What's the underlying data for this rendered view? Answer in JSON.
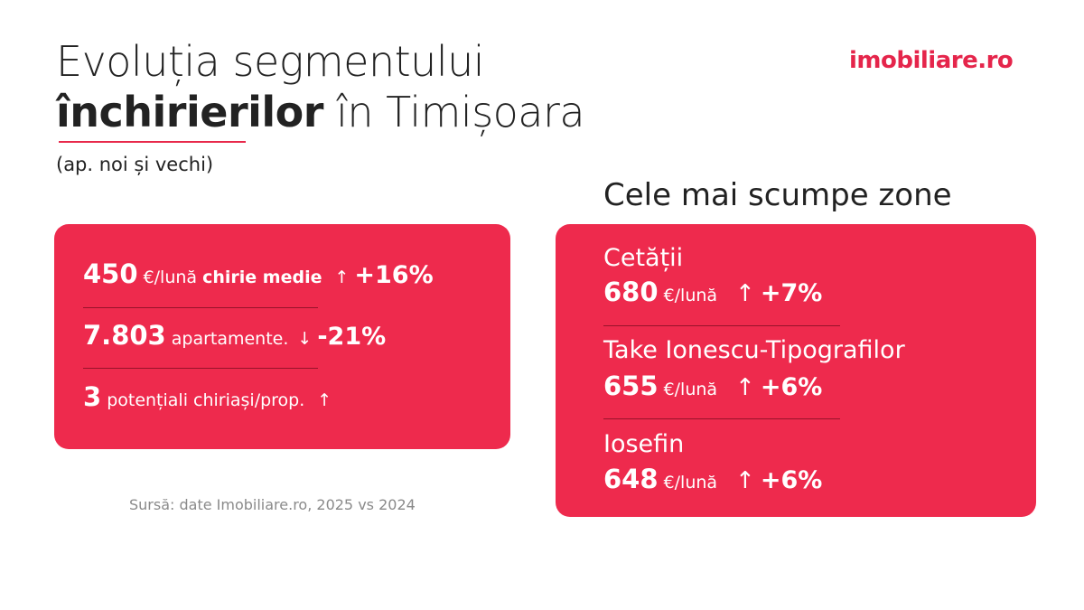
{
  "header": {
    "title_line1": "Evoluția segmentului",
    "title_bold": "închirierilor",
    "title_rest": " în Timișoara",
    "subtitle": "(ap. noi și vechi)",
    "logo": "imobiliare.ro"
  },
  "stats": [
    {
      "value": "450",
      "unit": "€/lună",
      "label": "chirie medie",
      "arrow": "↑",
      "change": "+16%"
    },
    {
      "value": "7.803",
      "unit": "apartamente.",
      "arrow": "↓",
      "change": "-21%"
    },
    {
      "value": "3",
      "unit": "potențiali chiriași/prop.",
      "arrow": "↑"
    }
  ],
  "source": "Sursă: date Imobiliare.ro, 2025 vs 2024",
  "zones": {
    "heading": "Cele mai scumpe zone",
    "items": [
      {
        "name": "Cetății",
        "value": "680",
        "unit": "€/lună",
        "arrow": "↑",
        "change": "+7%"
      },
      {
        "name": "Take Ionescu-Tipografilor",
        "value": "655",
        "unit": "€/lună",
        "arrow": "↑",
        "change": "+6%"
      },
      {
        "name": "Iosefin",
        "value": "648",
        "unit": "€/lună",
        "arrow": "↑",
        "change": "+6%"
      }
    ]
  }
}
